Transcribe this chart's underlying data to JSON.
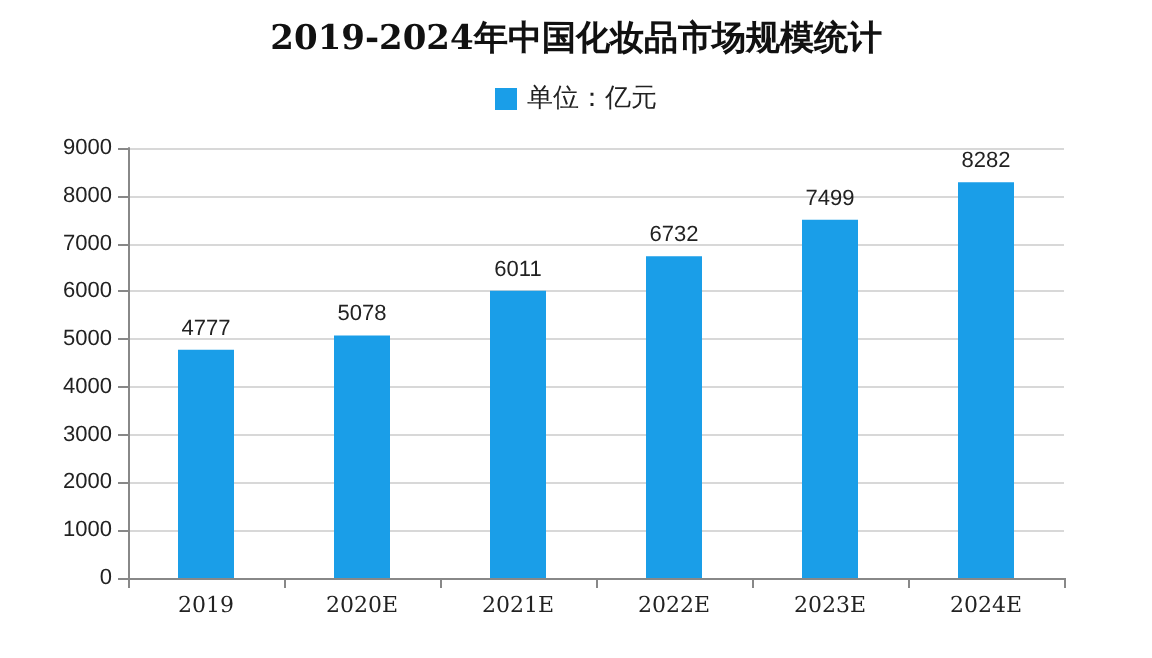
{
  "chart_data": {
    "type": "bar",
    "title": "2019-2024年中国化妆品市场规模统计",
    "categories": [
      "2019",
      "2020E",
      "2021E",
      "2022E",
      "2023E",
      "2024E"
    ],
    "series": [
      {
        "name": "单位：亿元",
        "color": "#1a9ee8",
        "values": [
          4777,
          5078,
          6011,
          6732,
          7499,
          8282
        ]
      }
    ],
    "ylim": [
      0,
      9000
    ],
    "yticks": [
      0,
      1000,
      2000,
      3000,
      4000,
      5000,
      6000,
      7000,
      8000,
      9000
    ],
    "grid": "y",
    "legend": "top",
    "data_labels": true
  }
}
